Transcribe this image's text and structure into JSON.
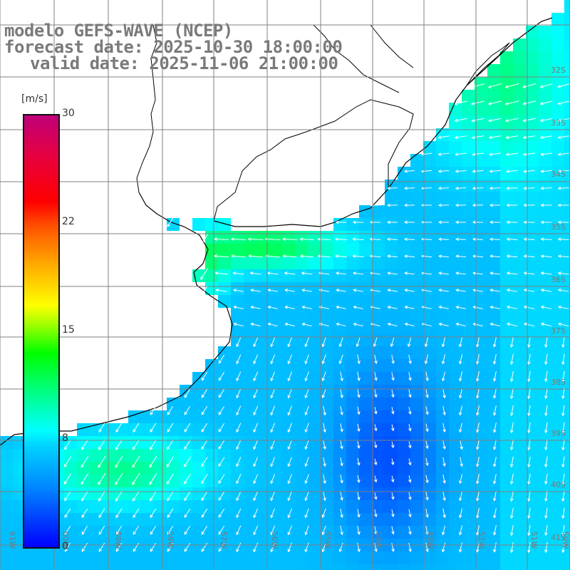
{
  "title": {
    "line1": "modelo GEFS-WAVE (NCEP)",
    "line2": "forecast date: 2025-10-30 18:00:00",
    "line3": "valid date: 2025-11-06 21:00:00"
  },
  "colorbar": {
    "unit": "[m/s]",
    "ticks": [
      {
        "label": "30",
        "value": 30
      },
      {
        "label": "22",
        "value": 22
      },
      {
        "label": "15",
        "value": 15
      },
      {
        "label": "8",
        "value": 8
      },
      {
        "label": "0",
        "value": 0
      }
    ],
    "min": 0,
    "max": 30
  },
  "longitude_labels": [
    "61W",
    "60W",
    "59W",
    "58W",
    "57W",
    "56W",
    "55W",
    "54W",
    "53W",
    "52W",
    "51W",
    "50W"
  ],
  "latitude_labels": [
    "32S",
    "33S",
    "34S",
    "35S",
    "36S",
    "37S",
    "38S",
    "39S",
    "40S",
    "41S"
  ],
  "colors": {
    "land": "#ffffff",
    "coastline": "#000000",
    "gridline": "#808080",
    "arrow": "#ffffff",
    "label": "#7a7a7a"
  },
  "layers": {
    "grid": true,
    "coastline": true,
    "wind_arrows": true
  }
}
